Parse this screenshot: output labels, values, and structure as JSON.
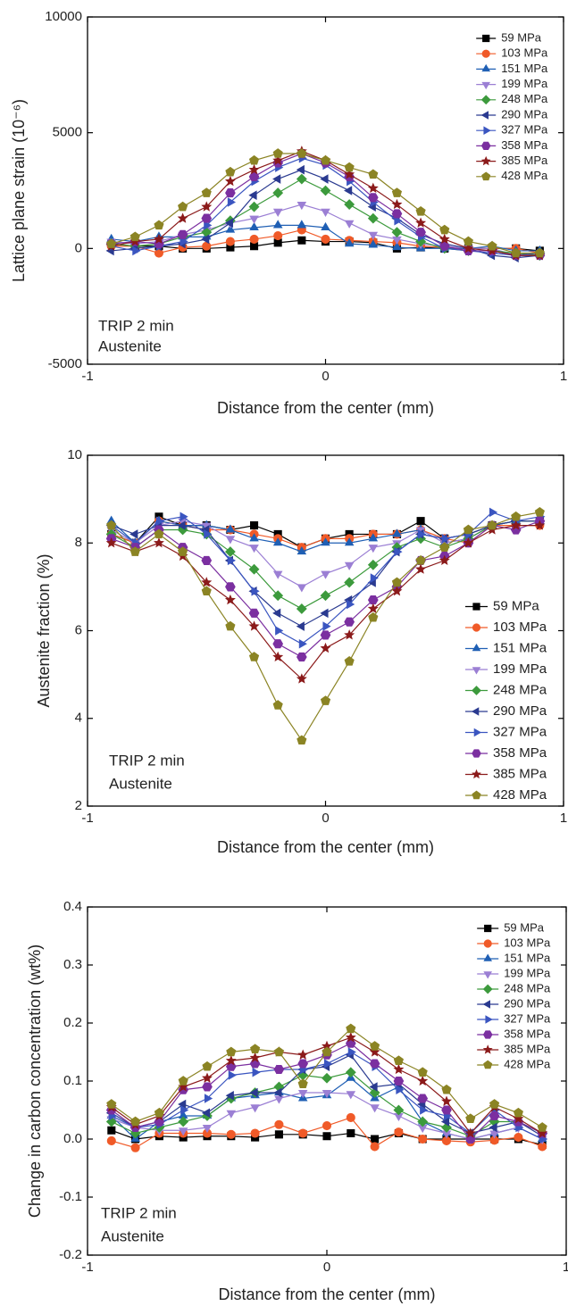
{
  "chart_data": [
    {
      "type": "line",
      "xlabel": "Distance from the center (mm)",
      "ylabel": "Lattice plane strain (10⁻⁶)",
      "xlim": [
        -1,
        1
      ],
      "xticks": [
        -1,
        0,
        1
      ],
      "ylim": [
        -5000,
        10000
      ],
      "yticks": [
        -5000,
        0,
        5000,
        10000
      ],
      "legend": "upper right",
      "annotations": [
        "TRIP 2 min",
        "Austenite"
      ],
      "x": [
        -0.9,
        -0.8,
        -0.7,
        -0.6,
        -0.5,
        -0.4,
        -0.3,
        -0.2,
        -0.1,
        0,
        0.1,
        0.2,
        0.3,
        0.4,
        0.5,
        0.6,
        0.7,
        0.8,
        0.9
      ],
      "series": [
        {
          "name": "59 MPa",
          "color": "#000000",
          "marker": "square",
          "values": [
            200,
            100,
            100,
            0,
            0,
            50,
            100,
            250,
            350,
            300,
            300,
            250,
            0,
            50,
            0,
            0,
            0,
            0,
            -100
          ]
        },
        {
          "name": "103 MPa",
          "color": "#f05a28",
          "marker": "circle",
          "values": [
            100,
            100,
            -200,
            50,
            100,
            300,
            400,
            550,
            800,
            400,
            350,
            300,
            250,
            100,
            50,
            0,
            0,
            0,
            -200
          ]
        },
        {
          "name": "151 MPa",
          "color": "#1f5fb4",
          "marker": "triangle-up",
          "values": [
            400,
            300,
            500,
            500,
            500,
            800,
            900,
            1000,
            1000,
            900,
            200,
            150,
            50,
            0,
            0,
            0,
            100,
            -100,
            -100
          ]
        },
        {
          "name": "199 MPa",
          "color": "#9b7fd4",
          "marker": "triangle-down",
          "values": [
            300,
            200,
            300,
            600,
            800,
            1100,
            1300,
            1600,
            1900,
            1600,
            1100,
            600,
            400,
            200,
            100,
            0,
            0,
            -300,
            -300
          ]
        },
        {
          "name": "248 MPa",
          "color": "#3c9a3c",
          "marker": "diamond",
          "values": [
            200,
            100,
            200,
            500,
            700,
            1200,
            1800,
            2400,
            3000,
            2500,
            1900,
            1300,
            700,
            300,
            0,
            -100,
            -100,
            -200,
            -300
          ]
        },
        {
          "name": "290 MPa",
          "color": "#2a3a90",
          "marker": "triangle-left",
          "values": [
            -100,
            0,
            100,
            200,
            400,
            1100,
            2300,
            3000,
            3400,
            3000,
            2500,
            1800,
            1300,
            600,
            200,
            0,
            -300,
            -400,
            -300
          ]
        },
        {
          "name": "327 MPa",
          "color": "#3a55c0",
          "marker": "triangle-right",
          "values": [
            100,
            -100,
            100,
            300,
            1000,
            2000,
            2900,
            3500,
            3900,
            3600,
            2900,
            2000,
            1200,
            500,
            0,
            -100,
            -200,
            -300,
            -200
          ]
        },
        {
          "name": "358 MPa",
          "color": "#7b2fa0",
          "marker": "hexagon",
          "values": [
            200,
            300,
            200,
            600,
            1300,
            2400,
            3100,
            3700,
            4100,
            3700,
            3100,
            2200,
            1500,
            700,
            100,
            -100,
            -100,
            -300,
            -300
          ]
        },
        {
          "name": "385 MPa",
          "color": "#8b1a1a",
          "marker": "star",
          "values": [
            100,
            300,
            400,
            1300,
            1800,
            2900,
            3400,
            3800,
            4200,
            3800,
            3200,
            2600,
            1900,
            1100,
            400,
            0,
            -100,
            -300,
            -300
          ]
        },
        {
          "name": "428 MPa",
          "color": "#8b8424",
          "marker": "pentagon",
          "values": [
            200,
            500,
            1000,
            1800,
            2400,
            3300,
            3800,
            4100,
            4100,
            3800,
            3500,
            3200,
            2400,
            1600,
            800,
            300,
            100,
            -200,
            -200
          ]
        }
      ]
    },
    {
      "type": "line",
      "xlabel": "Distance from the center (mm)",
      "ylabel": "Austenite fraction (%)",
      "xlim": [
        -1,
        1
      ],
      "xticks": [
        -1,
        0,
        1
      ],
      "ylim": [
        2,
        10
      ],
      "yticks": [
        2,
        4,
        6,
        8,
        10
      ],
      "legend": "lower right",
      "annotations": [
        "TRIP 2 min",
        "Austenite"
      ],
      "x": [
        -0.9,
        -0.8,
        -0.7,
        -0.6,
        -0.5,
        -0.4,
        -0.3,
        -0.2,
        -0.1,
        0,
        0.1,
        0.2,
        0.3,
        0.4,
        0.5,
        0.6,
        0.7,
        0.8,
        0.9
      ],
      "series": [
        {
          "name": "59 MPa",
          "color": "#000000",
          "marker": "square",
          "values": [
            8.2,
            8.0,
            8.6,
            8.4,
            8.4,
            8.3,
            8.4,
            8.2,
            7.9,
            8.1,
            8.2,
            8.2,
            8.2,
            8.5,
            8.1,
            8.2,
            8.4,
            8.5,
            8.5
          ]
        },
        {
          "name": "103 MPa",
          "color": "#f05a28",
          "marker": "circle",
          "values": [
            8.2,
            8.0,
            8.5,
            8.4,
            8.3,
            8.3,
            8.2,
            8.1,
            7.9,
            8.1,
            8.1,
            8.2,
            8.2,
            8.3,
            8.1,
            8.0,
            8.4,
            8.4,
            8.4
          ]
        },
        {
          "name": "151 MPa",
          "color": "#1f5fb4",
          "marker": "triangle-up",
          "values": [
            8.5,
            8.0,
            8.5,
            8.4,
            8.4,
            8.3,
            8.1,
            8.0,
            7.8,
            8.0,
            8.0,
            8.1,
            8.2,
            8.3,
            8.0,
            8.1,
            8.4,
            8.5,
            8.5
          ]
        },
        {
          "name": "199 MPa",
          "color": "#9b7fd4",
          "marker": "triangle-down",
          "values": [
            8.3,
            8.0,
            8.4,
            8.5,
            8.4,
            8.1,
            7.9,
            7.3,
            7.0,
            7.3,
            7.5,
            7.9,
            8.0,
            8.3,
            8.0,
            8.1,
            8.4,
            8.5,
            8.5
          ]
        },
        {
          "name": "248 MPa",
          "color": "#3c9a3c",
          "marker": "diamond",
          "values": [
            8.2,
            7.9,
            8.3,
            8.3,
            8.2,
            7.8,
            7.4,
            6.8,
            6.5,
            6.8,
            7.1,
            7.5,
            7.9,
            8.1,
            7.9,
            8.1,
            8.4,
            8.5,
            8.5
          ]
        },
        {
          "name": "290 MPa",
          "color": "#2a3a90",
          "marker": "triangle-left",
          "values": [
            8.4,
            8.2,
            8.4,
            8.4,
            8.3,
            7.6,
            6.9,
            6.4,
            6.1,
            6.4,
            6.7,
            7.1,
            7.8,
            8.2,
            8.1,
            8.2,
            8.4,
            8.5,
            8.5
          ]
        },
        {
          "name": "327 MPa",
          "color": "#3a55c0",
          "marker": "triangle-right",
          "values": [
            8.4,
            8.0,
            8.5,
            8.6,
            8.2,
            7.6,
            6.9,
            6.0,
            5.7,
            6.1,
            6.6,
            7.2,
            7.8,
            8.2,
            8.1,
            8.2,
            8.7,
            8.5,
            8.6
          ]
        },
        {
          "name": "358 MPa",
          "color": "#7b2fa0",
          "marker": "hexagon",
          "values": [
            8.1,
            7.9,
            8.3,
            7.9,
            7.6,
            7.0,
            6.4,
            5.7,
            5.4,
            5.9,
            6.2,
            6.7,
            7.0,
            7.6,
            7.7,
            8.0,
            8.4,
            8.3,
            8.5
          ]
        },
        {
          "name": "385 MPa",
          "color": "#8b1a1a",
          "marker": "star",
          "values": [
            8.0,
            7.8,
            8.0,
            7.7,
            7.1,
            6.7,
            6.1,
            5.4,
            4.9,
            5.6,
            5.9,
            6.5,
            6.9,
            7.4,
            7.6,
            8.0,
            8.3,
            8.4,
            8.4
          ]
        },
        {
          "name": "428 MPa",
          "color": "#8b8424",
          "marker": "pentagon",
          "values": [
            8.4,
            7.8,
            8.2,
            7.8,
            6.9,
            6.1,
            5.4,
            4.3,
            3.5,
            4.4,
            5.3,
            6.3,
            7.1,
            7.6,
            7.9,
            8.3,
            8.4,
            8.6,
            8.7
          ]
        }
      ]
    },
    {
      "type": "line",
      "xlabel": "Distance from the center (mm)",
      "ylabel": "Change in carbon concentration (wt%)",
      "xlim": [
        -1,
        1
      ],
      "xticks": [
        -1,
        0,
        1
      ],
      "ylim": [
        -0.2,
        0.4
      ],
      "yticks": [
        -0.2,
        -0.1,
        {
          "value": 0,
          "label": "0.0"
        },
        0.1,
        0.2,
        0.3,
        0.4
      ],
      "legend": "upper right",
      "annotations": [
        "TRIP 2 min",
        "Austenite"
      ],
      "x": [
        -0.9,
        -0.8,
        -0.7,
        -0.6,
        -0.5,
        -0.4,
        -0.3,
        -0.2,
        -0.1,
        0,
        0.1,
        0.2,
        0.3,
        0.4,
        0.5,
        0.6,
        0.7,
        0.8,
        0.9
      ],
      "series": [
        {
          "name": "59 MPa",
          "color": "#000000",
          "marker": "square",
          "values": [
            0.015,
            0.0,
            0.005,
            0.003,
            0.005,
            0.005,
            0.003,
            0.008,
            0.008,
            0.005,
            0.01,
            0.0,
            0.01,
            0.0,
            0.0,
            0.0,
            0.0,
            0.0,
            -0.01
          ]
        },
        {
          "name": "103 MPa",
          "color": "#f05a28",
          "marker": "circle",
          "values": [
            -0.003,
            -0.015,
            0.01,
            0.01,
            0.01,
            0.008,
            0.01,
            0.025,
            0.01,
            0.023,
            0.037,
            -0.013,
            0.012,
            0.0,
            -0.003,
            -0.005,
            -0.002,
            0.003,
            -0.013
          ]
        },
        {
          "name": "151 MPa",
          "color": "#1f5fb4",
          "marker": "triangle-up",
          "values": [
            0.04,
            0.0,
            0.03,
            0.04,
            0.04,
            0.07,
            0.075,
            0.08,
            0.07,
            0.075,
            0.105,
            0.07,
            0.09,
            0.03,
            0.01,
            0.0,
            0.01,
            0.02,
            0.0
          ]
        },
        {
          "name": "199 MPa",
          "color": "#9b7fd4",
          "marker": "triangle-down",
          "values": [
            0.035,
            0.02,
            0.015,
            0.015,
            0.02,
            0.045,
            0.055,
            0.07,
            0.08,
            0.08,
            0.078,
            0.055,
            0.04,
            0.02,
            0.01,
            0.0,
            0.01,
            0.02,
            0.0
          ]
        },
        {
          "name": "248 MPa",
          "color": "#3c9a3c",
          "marker": "diamond",
          "values": [
            0.03,
            0.01,
            0.02,
            0.03,
            0.04,
            0.07,
            0.08,
            0.09,
            0.11,
            0.105,
            0.115,
            0.08,
            0.05,
            0.03,
            0.02,
            0.005,
            0.03,
            0.03,
            0.01
          ]
        },
        {
          "name": "290 MPa",
          "color": "#2a3a90",
          "marker": "triangle-left",
          "values": [
            0.045,
            0.02,
            0.03,
            0.06,
            0.045,
            0.075,
            0.08,
            0.08,
            0.12,
            0.125,
            0.145,
            0.09,
            0.095,
            0.06,
            0.03,
            0.01,
            0.02,
            0.03,
            0.005
          ]
        },
        {
          "name": "327 MPa",
          "color": "#3a55c0",
          "marker": "triangle-right",
          "values": [
            0.04,
            0.02,
            0.025,
            0.05,
            0.07,
            0.11,
            0.115,
            0.12,
            0.12,
            0.13,
            0.15,
            0.125,
            0.085,
            0.05,
            0.04,
            0.01,
            0.05,
            0.02,
            0.0
          ]
        },
        {
          "name": "358 MPa",
          "color": "#7b2fa0",
          "marker": "hexagon",
          "values": [
            0.05,
            0.02,
            0.03,
            0.085,
            0.09,
            0.125,
            0.13,
            0.12,
            0.13,
            0.145,
            0.165,
            0.13,
            0.1,
            0.07,
            0.05,
            0.0,
            0.04,
            0.03,
            0.01
          ]
        },
        {
          "name": "385 MPa",
          "color": "#8b1a1a",
          "marker": "star",
          "values": [
            0.055,
            0.025,
            0.04,
            0.09,
            0.105,
            0.135,
            0.14,
            0.15,
            0.145,
            0.16,
            0.175,
            0.15,
            0.12,
            0.1,
            0.065,
            0.01,
            0.055,
            0.035,
            0.01
          ]
        },
        {
          "name": "428 MPa",
          "color": "#8b8424",
          "marker": "pentagon",
          "values": [
            0.06,
            0.03,
            0.045,
            0.1,
            0.125,
            0.15,
            0.155,
            0.15,
            0.095,
            0.15,
            0.19,
            0.16,
            0.135,
            0.115,
            0.085,
            0.035,
            0.06,
            0.045,
            0.02
          ]
        }
      ]
    }
  ]
}
